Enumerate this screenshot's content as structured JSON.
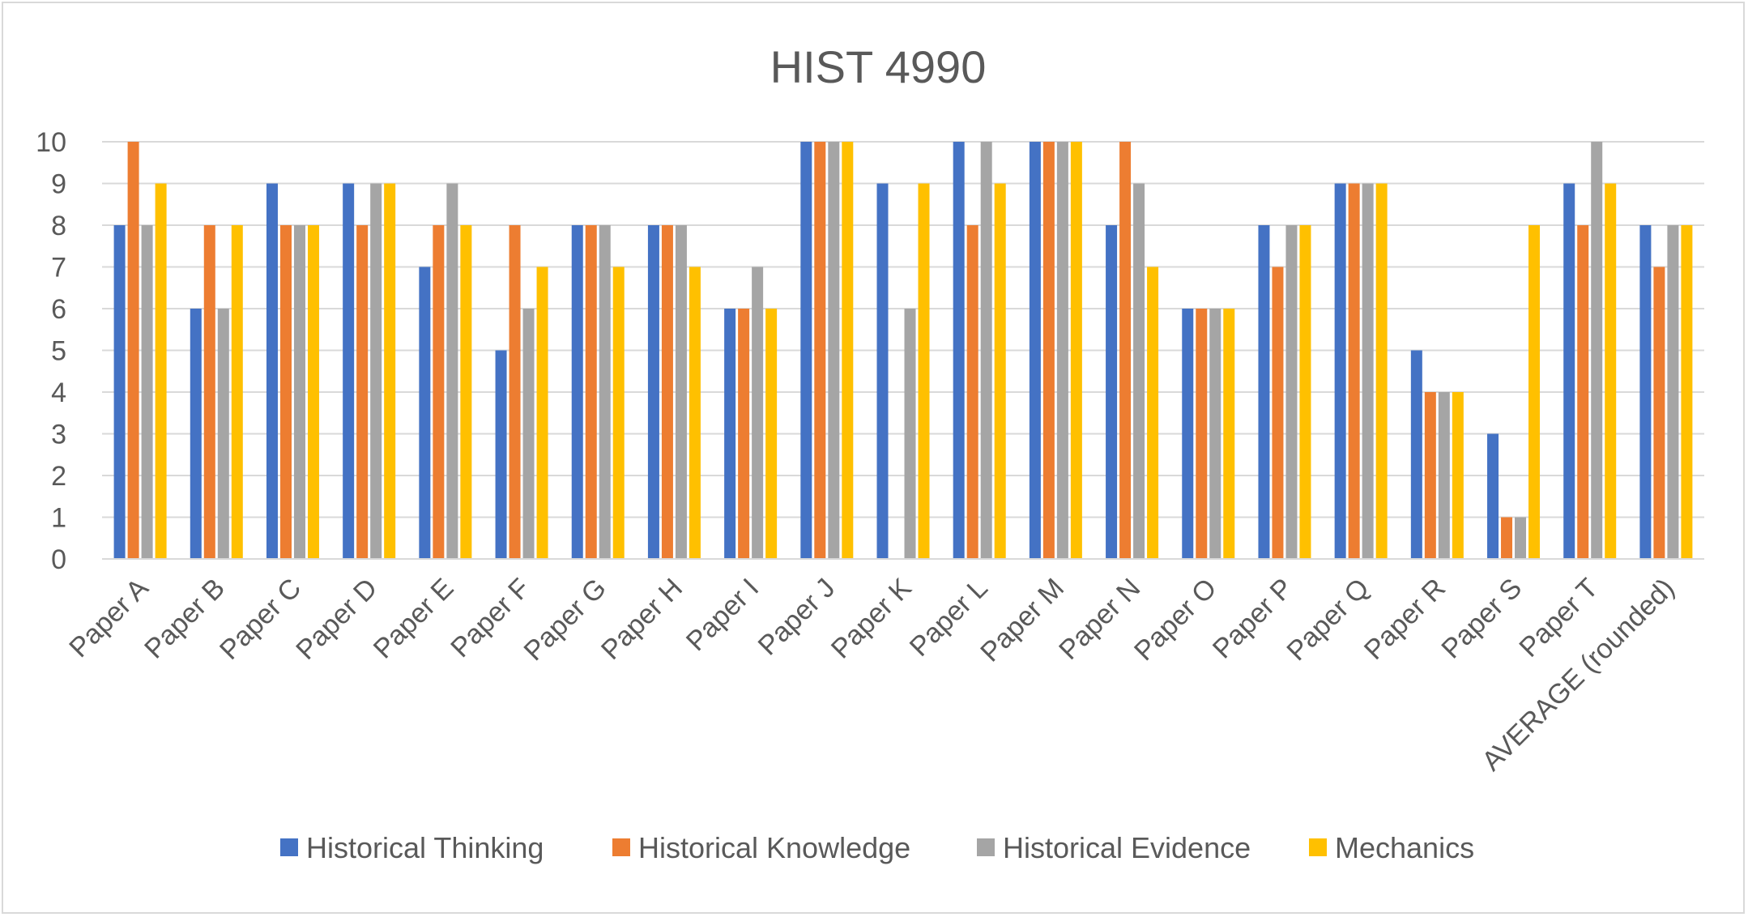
{
  "chart_data": {
    "type": "bar",
    "title": "HIST 4990",
    "xlabel": "",
    "ylabel": "",
    "ylim": [
      0,
      10
    ],
    "yticks": [
      "0",
      "1",
      "2",
      "3",
      "4",
      "5",
      "6",
      "7",
      "8",
      "9",
      "10"
    ],
    "grid": true,
    "legend_position": "bottom",
    "categories": [
      "Paper A",
      "Paper B",
      "Paper C",
      "Paper D",
      "Paper E",
      "Paper F",
      "Paper G",
      "Paper H",
      "Paper I",
      "Paper J",
      "Paper K",
      "Paper L",
      "Paper M",
      "Paper N",
      "Paper O",
      "Paper P",
      "Paper Q",
      "Paper R",
      "Paper S",
      "Paper T",
      "AVERAGE (rounded)"
    ],
    "series": [
      {
        "name": "Historical Thinking",
        "color": "#4472c4",
        "values": [
          8,
          6,
          9,
          9,
          7,
          5,
          8,
          8,
          6,
          10,
          9,
          10,
          10,
          8,
          6,
          8,
          9,
          5,
          3,
          9,
          8
        ]
      },
      {
        "name": "Historical Knowledge",
        "color": "#ed7d31",
        "values": [
          10,
          8,
          8,
          8,
          8,
          8,
          8,
          8,
          6,
          10,
          0,
          8,
          10,
          10,
          6,
          7,
          9,
          4,
          1,
          8,
          7
        ]
      },
      {
        "name": "Historical Evidence",
        "color": "#a5a5a5",
        "values": [
          8,
          6,
          8,
          9,
          9,
          6,
          8,
          8,
          7,
          10,
          6,
          10,
          10,
          9,
          6,
          8,
          9,
          4,
          1,
          10,
          8
        ]
      },
      {
        "name": "Mechanics",
        "color": "#ffc000",
        "values": [
          9,
          8,
          8,
          9,
          8,
          7,
          7,
          7,
          6,
          10,
          9,
          9,
          10,
          7,
          6,
          8,
          9,
          4,
          8,
          9,
          8
        ]
      }
    ]
  }
}
